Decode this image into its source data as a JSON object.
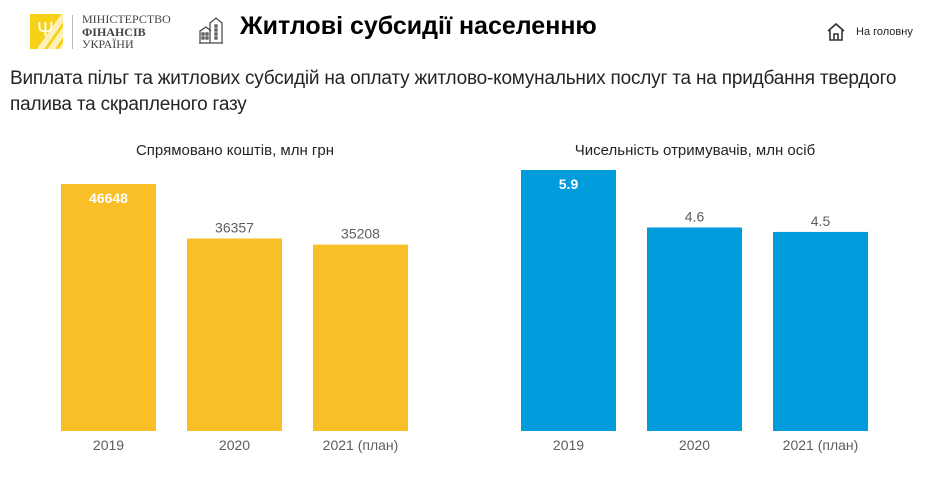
{
  "header": {
    "ministry_lines": [
      "МІНІСТЕРСТВО",
      "ФІНАНСІВ",
      "УКРАЇНИ"
    ],
    "logo_icon": "trident-icon",
    "page_icon": "buildings-icon",
    "title": "Житлові субсидії населенню",
    "home_label": "На головну",
    "home_icon": "home-icon"
  },
  "subtitle": "Виплата пільг та житлових субсидій на оплату житлово-комунальних послуг та на придбання твердого палива та скрапленого газу",
  "colors": {
    "yellow": "#F8BF27",
    "blue": "#009CDC",
    "logo": "#F7D117"
  },
  "chart_data": [
    {
      "type": "bar",
      "title": "Спрямовано коштів, млн грн",
      "categories": [
        "2019",
        "2020",
        "2021 (план)"
      ],
      "values": [
        46648,
        36357,
        35208
      ],
      "labels": [
        "46648",
        "36357",
        "35208"
      ],
      "color": "#F8BF27",
      "xlabel": "",
      "ylabel": "",
      "ylim": [
        0,
        50000
      ],
      "grid": false
    },
    {
      "type": "bar",
      "title": "Чисельність отримувачів, млн осіб",
      "categories": [
        "2019",
        "2020",
        "2021 (план)"
      ],
      "values": [
        5.9,
        4.6,
        4.5
      ],
      "labels": [
        "5.9",
        "4.6",
        "4.5"
      ],
      "color": "#009CDC",
      "xlabel": "",
      "ylabel": "",
      "ylim": [
        0,
        6.3
      ],
      "grid": false
    }
  ]
}
